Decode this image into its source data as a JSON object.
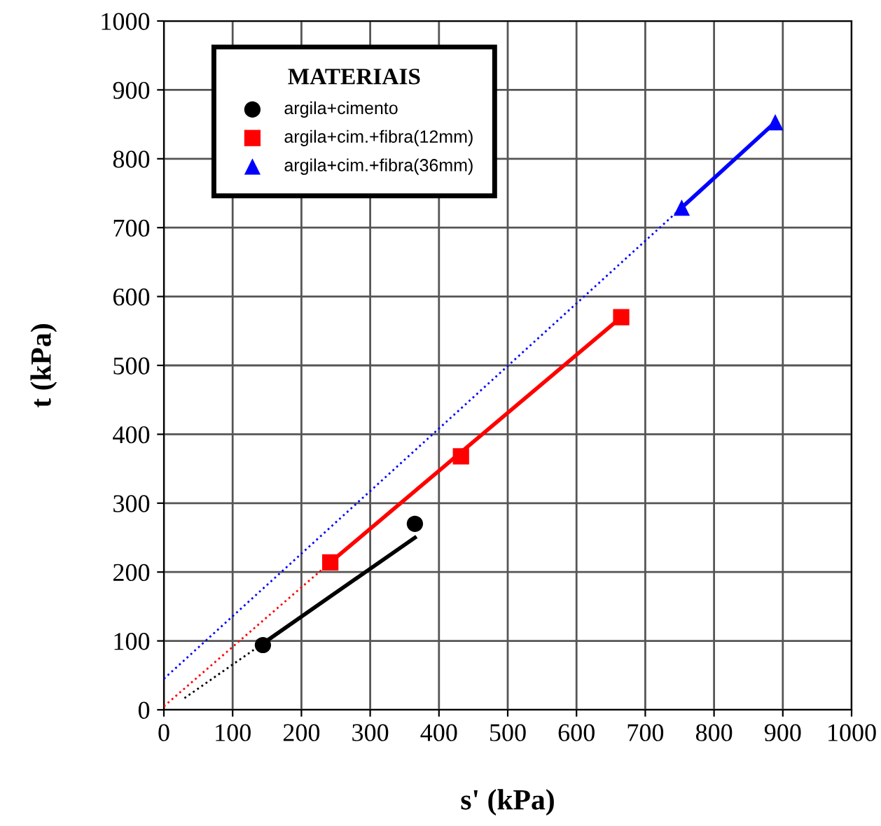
{
  "chart_data": {
    "type": "scatter",
    "xlabel": "s' (kPa)",
    "ylabel": "t (kPa)",
    "legend_title": "MATERIAIS",
    "xlim": [
      0,
      1000
    ],
    "ylim": [
      0,
      1000
    ],
    "xticks": [
      0,
      100,
      200,
      300,
      400,
      500,
      600,
      700,
      800,
      900,
      1000
    ],
    "yticks": [
      0,
      100,
      200,
      300,
      400,
      500,
      600,
      700,
      800,
      900,
      1000
    ],
    "grid": true,
    "legend": "top left",
    "series": [
      {
        "name": "argila+cimento",
        "marker": "circle",
        "color": "#000000",
        "x": [
          144,
          365
        ],
        "values": [
          94,
          270
        ]
      },
      {
        "name": "argila+cim.+fibra(12mm)",
        "marker": "square",
        "color": "#ff0000",
        "x": [
          242,
          432,
          665
        ],
        "values": [
          214,
          368,
          570
        ]
      },
      {
        "name": "argila+cim.+fibra(36mm)",
        "marker": "triangle",
        "color": "#0000ff",
        "x": [
          753,
          889
        ],
        "values": [
          729,
          853
        ]
      },
      {
        "type": "line",
        "line_style": "solid",
        "color": "#000000",
        "x": [
          145,
          365
        ],
        "values": [
          97,
          250
        ]
      },
      {
        "type": "line",
        "line_style": "dotted",
        "color": "#000000",
        "x": [
          30,
          145
        ],
        "values": [
          17,
          97
        ]
      },
      {
        "type": "line",
        "line_style": "solid",
        "color": "#ff0000",
        "x": [
          242,
          665
        ],
        "values": [
          214,
          570
        ]
      },
      {
        "type": "line",
        "line_style": "dotted",
        "color": "#ff0000",
        "x": [
          0,
          242
        ],
        "values": [
          5,
          214
        ]
      },
      {
        "type": "line",
        "line_style": "solid",
        "color": "#0000ff",
        "x": [
          753,
          889
        ],
        "values": [
          729,
          853
        ]
      },
      {
        "type": "line",
        "line_style": "dotted",
        "color": "#0000ff",
        "x": [
          0,
          753
        ],
        "values": [
          45,
          729
        ]
      }
    ]
  }
}
